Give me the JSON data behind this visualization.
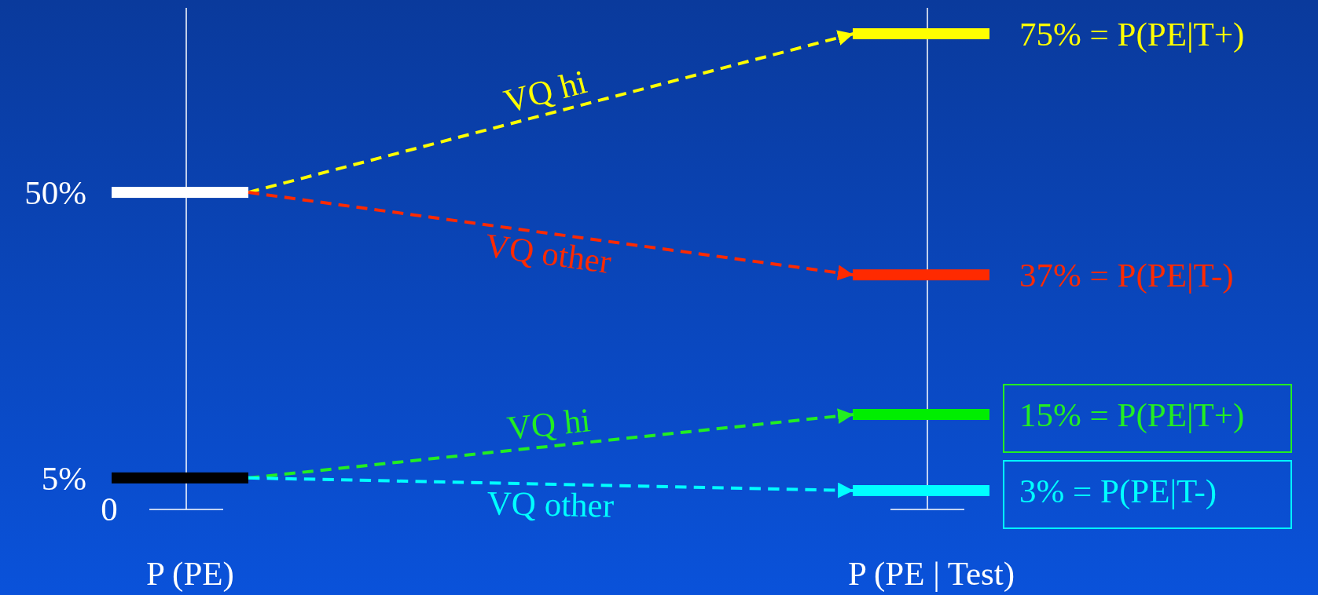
{
  "chart_data": {
    "type": "other",
    "categories": [
      "P (PE)",
      "P (PE | Test)"
    ],
    "annotations": [
      "0"
    ],
    "series": [
      {
        "name": "VQ hi",
        "color": "#ffff00",
        "colors": [
          "#ffffff",
          "#ffff00"
        ],
        "values": [
          50,
          75
        ],
        "value_labels": [
          "50%",
          "75% = P(PE|T+)"
        ]
      },
      {
        "name": "VQ other",
        "color": "#ff2a00",
        "colors": [
          null,
          "#ff2a00"
        ],
        "values": [
          null,
          37
        ],
        "value_labels": [
          null,
          "37% = P(PE|T-)"
        ]
      },
      {
        "name": "VQ hi",
        "color": "#22ee22",
        "colors": [
          "#000000",
          "#00ee00"
        ],
        "values": [
          5,
          15
        ],
        "value_labels": [
          "5%",
          "15% = P(PE|T+)"
        ]
      },
      {
        "name": "VQ other",
        "color": "#00ffff",
        "colors": [
          null,
          "#00ffff"
        ],
        "values": [
          null,
          3
        ],
        "value_labels": [
          null,
          "3% = P(PE|T-)"
        ]
      }
    ]
  }
}
